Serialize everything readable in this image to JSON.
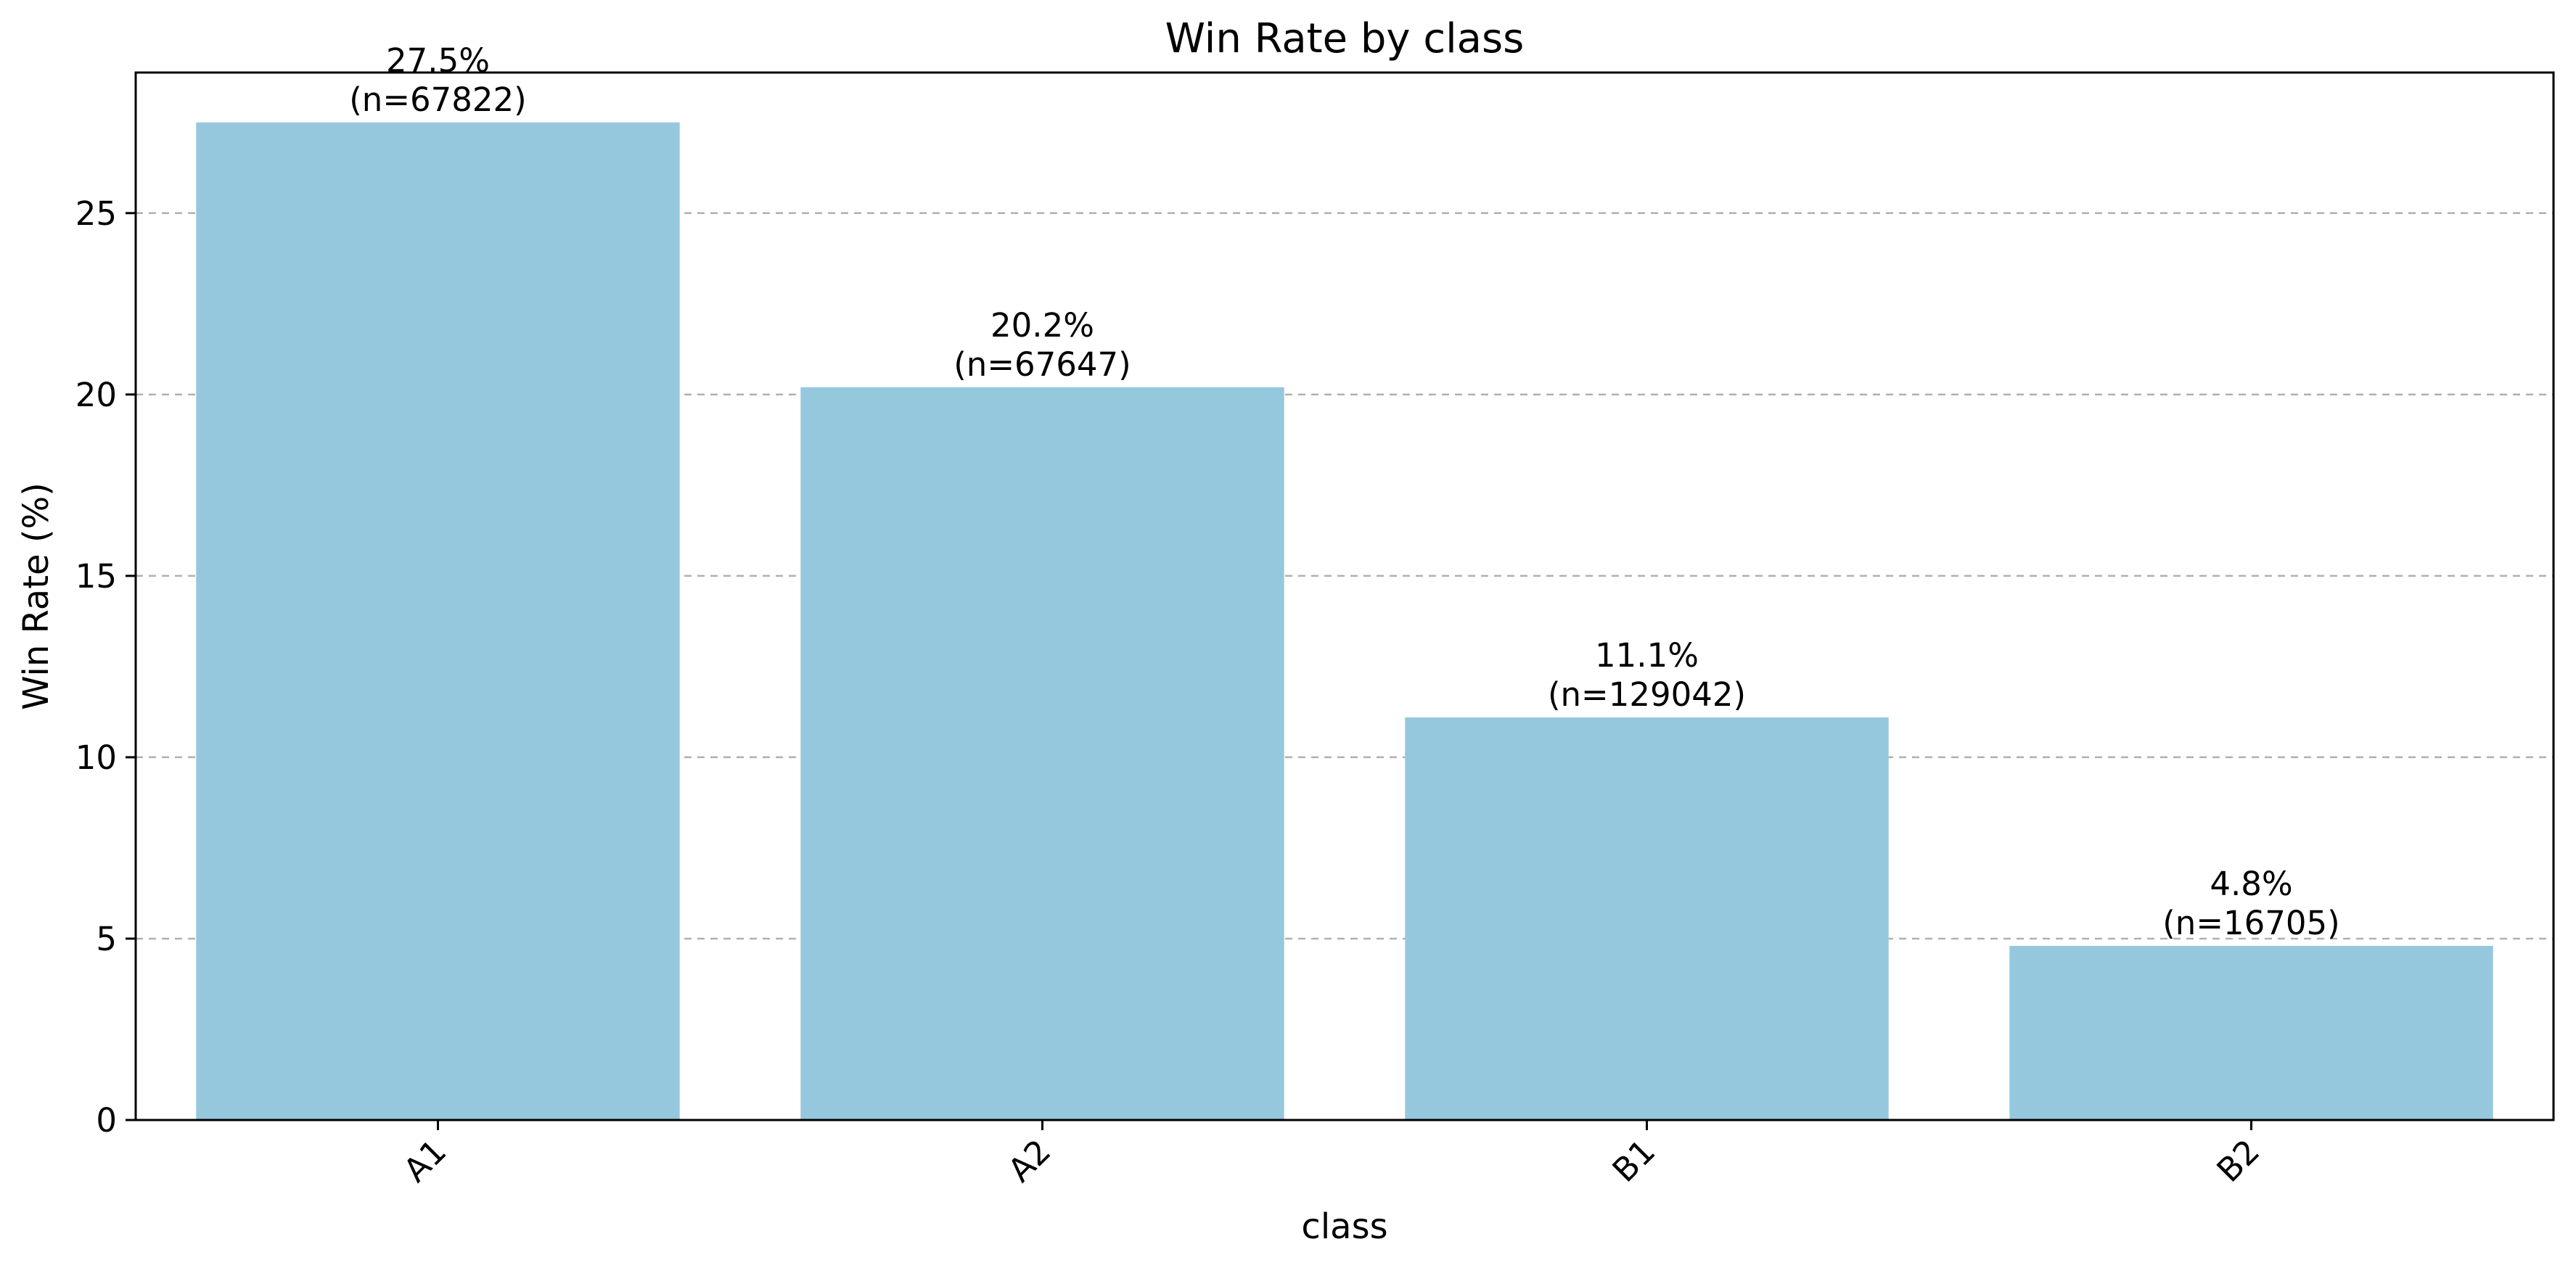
{
  "chart_data": {
    "type": "bar",
    "title": "Win Rate by class",
    "xlabel": "class",
    "ylabel": "Win Rate (%)",
    "categories": [
      "A1",
      "A2",
      "B1",
      "B2"
    ],
    "values": [
      27.5,
      20.2,
      11.1,
      4.8
    ],
    "data_labels": [
      [
        "27.5%",
        "(n=67822)"
      ],
      [
        "20.2%",
        "(n=67647)"
      ],
      [
        "11.1%",
        "(n=129042)"
      ],
      [
        "4.8%",
        "(n=16705)"
      ]
    ],
    "yticks": [
      0,
      5,
      10,
      15,
      20,
      25
    ],
    "ylim": [
      0,
      28.875
    ],
    "grid": "y-dashed",
    "legend": "none",
    "bar_color": "#96c8dd",
    "grid_color": "#b0b0b0"
  }
}
